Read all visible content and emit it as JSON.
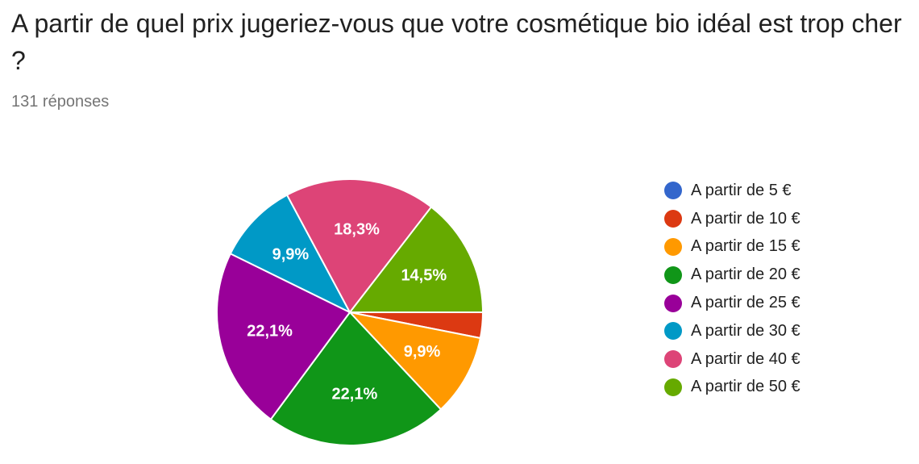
{
  "question": "A partir de quel prix jugeriez-vous que votre cosmétique bio idéal est trop cher ?",
  "responses": "131 réponses",
  "chart_data": {
    "type": "pie",
    "title": "A partir de quel prix jugeriez-vous que votre cosmétique bio idéal est trop cher ?",
    "legend_position": "right",
    "slices": [
      {
        "name": "A partir de 5 €",
        "value": 0.0,
        "label": "",
        "color": "#3366cc"
      },
      {
        "name": "A partir de 10 €",
        "value": 3.1,
        "label": "",
        "color": "#dc3912"
      },
      {
        "name": "A partir de 15 €",
        "value": 9.9,
        "label": "9,9%",
        "color": "#ff9900"
      },
      {
        "name": "A partir de 20 €",
        "value": 22.1,
        "label": "22,1%",
        "color": "#109618"
      },
      {
        "name": "A partir de 25 €",
        "value": 22.1,
        "label": "22,1%",
        "color": "#990099"
      },
      {
        "name": "A partir de 30 €",
        "value": 9.9,
        "label": "9,9%",
        "color": "#0099c6"
      },
      {
        "name": "A partir de 40 €",
        "value": 18.3,
        "label": "18,3%",
        "color": "#dd4477"
      },
      {
        "name": "A partir de 50 €",
        "value": 14.5,
        "label": "14,5%",
        "color": "#66aa00"
      }
    ]
  }
}
